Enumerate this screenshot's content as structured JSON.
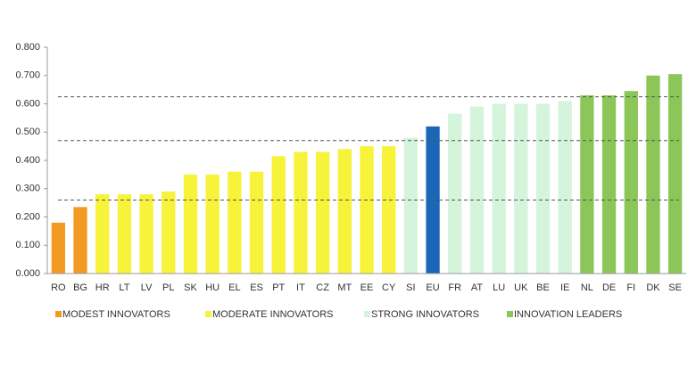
{
  "chart_data": {
    "type": "bar",
    "categories": [
      "RO",
      "BG",
      "HR",
      "LT",
      "LV",
      "PL",
      "SK",
      "HU",
      "EL",
      "ES",
      "PT",
      "IT",
      "CZ",
      "MT",
      "EE",
      "CY",
      "SI",
      "EU",
      "FR",
      "AT",
      "LU",
      "UK",
      "BE",
      "IE",
      "NL",
      "DE",
      "FI",
      "DK",
      "SE"
    ],
    "values": [
      0.18,
      0.235,
      0.28,
      0.28,
      0.28,
      0.29,
      0.35,
      0.35,
      0.36,
      0.36,
      0.415,
      0.43,
      0.43,
      0.44,
      0.45,
      0.45,
      0.48,
      0.52,
      0.565,
      0.59,
      0.6,
      0.6,
      0.6,
      0.61,
      0.63,
      0.63,
      0.645,
      0.7,
      0.705
    ],
    "colors": [
      "#f39a22",
      "#f39a22",
      "#f7f23a",
      "#f7f23a",
      "#f7f23a",
      "#f7f23a",
      "#f7f23a",
      "#f7f23a",
      "#f7f23a",
      "#f7f23a",
      "#f7f23a",
      "#f7f23a",
      "#f7f23a",
      "#f7f23a",
      "#f7f23a",
      "#f7f23a",
      "#d4f5dc",
      "#1a67b8",
      "#d4f5dc",
      "#d4f5dc",
      "#d4f5dc",
      "#d4f5dc",
      "#d4f5dc",
      "#d4f5dc",
      "#8cc659",
      "#8cc659",
      "#8cc659",
      "#8cc659",
      "#8cc659"
    ],
    "legend": [
      {
        "label": "MODEST INNOVATORS",
        "color": "#f39a22"
      },
      {
        "label": "MODERATE INNOVATORS",
        "color": "#f7f23a"
      },
      {
        "label": "STRONG INNOVATORS",
        "color": "#d4f5dc"
      },
      {
        "label": "INNOVATION LEADERS",
        "color": "#8cc659"
      }
    ],
    "reference_lines": [
      0.26,
      0.47,
      0.625
    ],
    "ylim": [
      0,
      0.8
    ],
    "yticks": [
      {
        "value": 0,
        "label": "0.000"
      },
      {
        "value": 0.1,
        "label": "0.100"
      },
      {
        "value": 0.2,
        "label": "0.200"
      },
      {
        "value": 0.3,
        "label": "0.300"
      },
      {
        "value": 0.4,
        "label": "0.400"
      },
      {
        "value": 0.5,
        "label": "0.500"
      },
      {
        "value": 0.6,
        "label": "0.600"
      },
      {
        "value": 0.7,
        "label": "0.700"
      },
      {
        "value": 0.8,
        "label": "0.800"
      }
    ]
  }
}
